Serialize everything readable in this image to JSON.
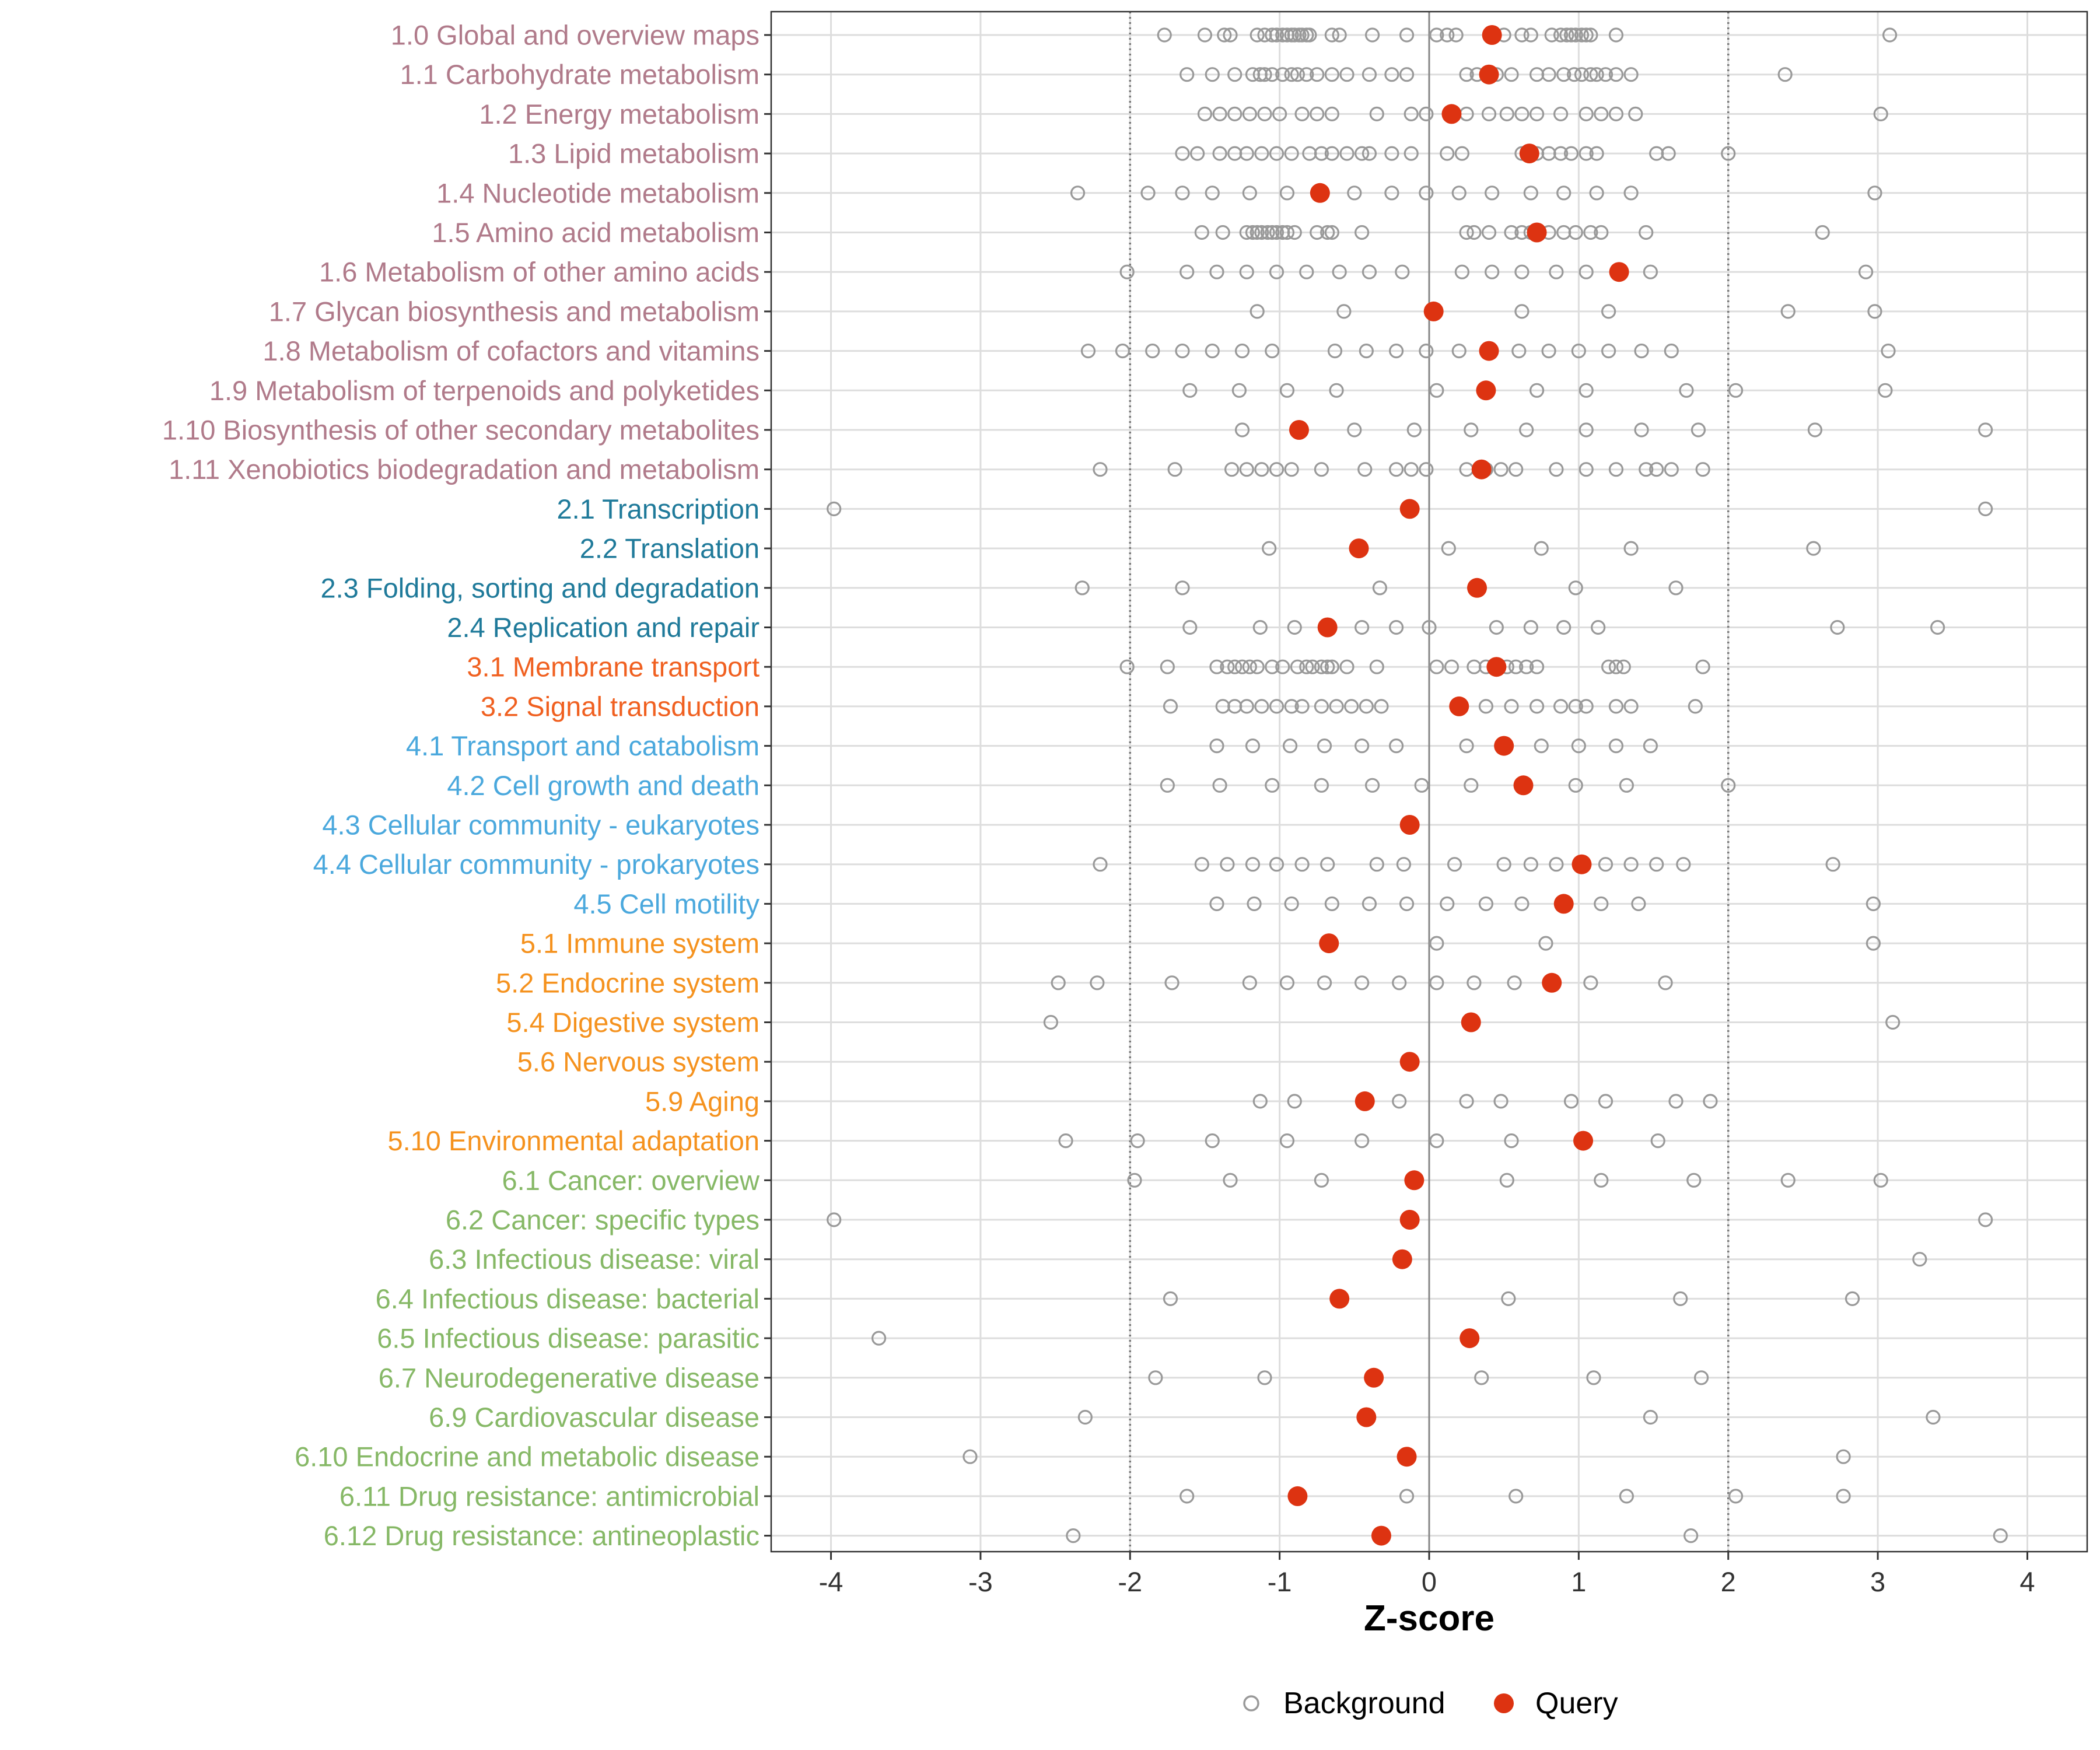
{
  "chart_data": {
    "type": "scatter",
    "xlabel": "Z-score",
    "ylabel": "",
    "xlim": [
      -4.4,
      4.4
    ],
    "xticks": [
      -4,
      -3,
      -2,
      -1,
      0,
      1,
      2,
      3,
      4
    ],
    "xtick_labels": [
      "-4",
      "-3",
      "-2",
      "-1",
      "0",
      "1",
      "2",
      "3",
      "4"
    ],
    "reference_lines": [
      -2,
      2
    ],
    "legend": {
      "position": "bottom",
      "items": [
        {
          "name": "Background",
          "marker": "open-circle"
        },
        {
          "name": "Query",
          "marker": "filled-circle"
        }
      ]
    },
    "colors": {
      "background": "#999999",
      "query": "#DD3311",
      "grid": "#DDDDDD",
      "group_1": "#B07A8A",
      "group_2": "#1F7A9A",
      "group_3": "#F06020",
      "group_4": "#4AA8DD",
      "group_5": "#F5921E",
      "group_6": "#86B866"
    },
    "categories": [
      {
        "label": "1.0 Global and overview maps",
        "group": 1,
        "query": 0.42,
        "background": [
          -1.77,
          -1.5,
          -1.37,
          -1.33,
          -1.15,
          -1.1,
          -1.05,
          -1.02,
          -0.98,
          -0.95,
          -0.92,
          -0.9,
          -0.87,
          -0.85,
          -0.82,
          -0.8,
          -0.65,
          -0.6,
          -0.38,
          -0.15,
          0.05,
          0.12,
          0.18,
          0.5,
          0.62,
          0.68,
          0.82,
          0.88,
          0.92,
          0.95,
          0.98,
          1.02,
          1.05,
          1.08,
          1.25,
          3.08
        ]
      },
      {
        "label": "1.1 Carbohydrate metabolism",
        "group": 1,
        "query": 0.4,
        "background": [
          -1.62,
          -1.45,
          -1.3,
          -1.18,
          -1.13,
          -1.1,
          -1.05,
          -0.98,
          -0.92,
          -0.88,
          -0.82,
          -0.75,
          -0.65,
          -0.55,
          -0.4,
          -0.25,
          -0.15,
          0.25,
          0.32,
          0.45,
          0.55,
          0.72,
          0.8,
          0.9,
          0.97,
          1.02,
          1.08,
          1.12,
          1.18,
          1.25,
          1.35,
          2.38
        ]
      },
      {
        "label": "1.2 Energy metabolism",
        "group": 1,
        "query": 0.15,
        "background": [
          -1.5,
          -1.4,
          -1.3,
          -1.2,
          -1.1,
          -1.0,
          -0.85,
          -0.75,
          -0.65,
          -0.35,
          -0.12,
          -0.02,
          0.25,
          0.4,
          0.52,
          0.62,
          0.72,
          0.88,
          1.05,
          1.15,
          1.25,
          1.38,
          3.02
        ]
      },
      {
        "label": "1.3 Lipid metabolism",
        "group": 1,
        "query": 0.67,
        "background": [
          -1.65,
          -1.55,
          -1.4,
          -1.3,
          -1.22,
          -1.12,
          -1.02,
          -0.92,
          -0.8,
          -0.72,
          -0.65,
          -0.55,
          -0.45,
          -0.4,
          -0.25,
          -0.12,
          0.12,
          0.22,
          0.62,
          0.72,
          0.8,
          0.88,
          0.95,
          1.05,
          1.12,
          1.52,
          1.6,
          2.0
        ]
      },
      {
        "label": "1.4 Nucleotide metabolism",
        "group": 1,
        "query": -0.73,
        "background": [
          -2.35,
          -1.88,
          -1.65,
          -1.45,
          -1.2,
          -0.95,
          -0.5,
          -0.25,
          -0.02,
          0.2,
          0.42,
          0.68,
          0.9,
          1.12,
          1.35,
          2.98
        ]
      },
      {
        "label": "1.5 Amino acid metabolism",
        "group": 1,
        "query": 0.72,
        "background": [
          -1.52,
          -1.38,
          -1.22,
          -1.18,
          -1.15,
          -1.12,
          -1.08,
          -1.05,
          -1.02,
          -0.98,
          -0.95,
          -0.9,
          -0.75,
          -0.68,
          -0.65,
          -0.45,
          0.25,
          0.3,
          0.4,
          0.55,
          0.62,
          0.68,
          0.8,
          0.9,
          0.98,
          1.08,
          1.15,
          1.45,
          2.63
        ]
      },
      {
        "label": "1.6 Metabolism of other amino acids",
        "group": 1,
        "query": 1.27,
        "background": [
          -2.02,
          -1.62,
          -1.42,
          -1.22,
          -1.02,
          -0.82,
          -0.6,
          -0.4,
          -0.18,
          0.22,
          0.42,
          0.62,
          0.85,
          1.05,
          1.48,
          2.92
        ]
      },
      {
        "label": "1.7 Glycan biosynthesis and metabolism",
        "group": 1,
        "query": 0.03,
        "background": [
          -1.15,
          -0.57,
          0.62,
          1.2,
          2.4,
          2.98
        ]
      },
      {
        "label": "1.8 Metabolism of cofactors and vitamins",
        "group": 1,
        "query": 0.4,
        "background": [
          -2.28,
          -2.05,
          -1.85,
          -1.65,
          -1.45,
          -1.25,
          -1.05,
          -0.63,
          -0.42,
          -0.22,
          -0.02,
          0.2,
          0.4,
          0.6,
          0.8,
          1.0,
          1.2,
          1.42,
          1.62,
          3.07
        ]
      },
      {
        "label": "1.9 Metabolism of terpenoids and polyketides",
        "group": 1,
        "query": 0.38,
        "background": [
          -1.6,
          -1.27,
          -0.95,
          -0.62,
          0.05,
          0.72,
          1.05,
          1.72,
          2.05,
          3.05
        ]
      },
      {
        "label": "1.10 Biosynthesis of other secondary metabolites",
        "group": 1,
        "query": -0.87,
        "background": [
          -1.25,
          -0.5,
          -0.1,
          0.28,
          0.65,
          1.05,
          1.42,
          1.8,
          2.58,
          3.72
        ]
      },
      {
        "label": "1.11 Xenobiotics biodegradation and metabolism",
        "group": 1,
        "query": 0.35,
        "background": [
          -2.2,
          -1.7,
          -1.32,
          -1.22,
          -1.12,
          -1.02,
          -0.92,
          -0.72,
          -0.43,
          -0.22,
          -0.12,
          -0.02,
          0.25,
          0.38,
          0.48,
          0.58,
          0.85,
          1.05,
          1.25,
          1.45,
          1.52,
          1.62,
          1.83
        ]
      },
      {
        "label": "2.1 Transcription",
        "group": 2,
        "query": -0.13,
        "background": [
          -3.98,
          3.72
        ]
      },
      {
        "label": "2.2 Translation",
        "group": 2,
        "query": -0.47,
        "background": [
          -1.07,
          0.13,
          0.75,
          1.35,
          2.57
        ]
      },
      {
        "label": "2.3 Folding, sorting and degradation",
        "group": 2,
        "query": 0.32,
        "background": [
          -2.32,
          -1.65,
          -0.33,
          0.98,
          1.65
        ]
      },
      {
        "label": "2.4 Replication and repair",
        "group": 2,
        "query": -0.68,
        "background": [
          -1.6,
          -1.13,
          -0.9,
          -0.68,
          -0.45,
          -0.22,
          0.0,
          0.45,
          0.68,
          0.9,
          1.13,
          2.73,
          3.4
        ]
      },
      {
        "label": "3.1 Membrane transport",
        "group": 3,
        "query": 0.45,
        "background": [
          -2.02,
          -1.75,
          -1.42,
          -1.35,
          -1.3,
          -1.25,
          -1.2,
          -1.15,
          -1.05,
          -0.98,
          -0.88,
          -0.82,
          -0.78,
          -0.72,
          -0.68,
          -0.65,
          -0.55,
          -0.35,
          0.05,
          0.15,
          0.3,
          0.38,
          0.45,
          0.52,
          0.58,
          0.65,
          0.72,
          1.2,
          1.25,
          1.3,
          1.83
        ]
      },
      {
        "label": "3.2 Signal transduction",
        "group": 3,
        "query": 0.2,
        "background": [
          -1.73,
          -1.38,
          -1.3,
          -1.22,
          -1.12,
          -1.02,
          -0.92,
          -0.85,
          -0.72,
          -0.62,
          -0.52,
          -0.42,
          -0.32,
          0.38,
          0.55,
          0.72,
          0.88,
          0.98,
          1.05,
          1.25,
          1.35,
          1.78
        ]
      },
      {
        "label": "4.1 Transport and catabolism",
        "group": 4,
        "query": 0.5,
        "background": [
          -1.42,
          -1.18,
          -0.93,
          -0.7,
          -0.45,
          -0.22,
          0.25,
          0.75,
          1.0,
          1.25,
          1.48
        ]
      },
      {
        "label": "4.2 Cell growth and death",
        "group": 4,
        "query": 0.63,
        "background": [
          -1.75,
          -1.4,
          -1.05,
          -0.72,
          -0.38,
          -0.05,
          0.28,
          0.98,
          1.32,
          2.0
        ]
      },
      {
        "label": "4.3 Cellular community - eukaryotes",
        "group": 4,
        "query": -0.13,
        "background": []
      },
      {
        "label": "4.4 Cellular community - prokaryotes",
        "group": 4,
        "query": 1.02,
        "background": [
          -2.2,
          -1.52,
          -1.35,
          -1.18,
          -1.02,
          -0.85,
          -0.68,
          -0.35,
          -0.17,
          0.17,
          0.5,
          0.68,
          0.85,
          1.18,
          1.35,
          1.52,
          1.7,
          2.7
        ]
      },
      {
        "label": "4.5 Cell motility",
        "group": 4,
        "query": 0.9,
        "background": [
          -1.42,
          -1.17,
          -0.92,
          -0.65,
          -0.4,
          -0.15,
          0.12,
          0.38,
          0.62,
          1.15,
          1.4,
          2.97
        ]
      },
      {
        "label": "5.1 Immune system",
        "group": 5,
        "query": -0.67,
        "background": [
          0.05,
          0.78,
          2.97
        ]
      },
      {
        "label": "5.2 Endocrine system",
        "group": 5,
        "query": 0.82,
        "background": [
          -2.48,
          -2.22,
          -1.72,
          -1.2,
          -0.95,
          -0.7,
          -0.45,
          -0.2,
          0.05,
          0.3,
          0.57,
          1.08,
          1.58
        ]
      },
      {
        "label": "5.4 Digestive system",
        "group": 5,
        "query": 0.28,
        "background": [
          -2.53,
          3.1
        ]
      },
      {
        "label": "5.6 Nervous system",
        "group": 5,
        "query": -0.13,
        "background": []
      },
      {
        "label": "5.9 Aging",
        "group": 5,
        "query": -0.43,
        "background": [
          -1.13,
          -0.9,
          -0.2,
          0.25,
          0.48,
          0.95,
          1.18,
          1.65,
          1.88
        ]
      },
      {
        "label": "5.10 Environmental adaptation",
        "group": 5,
        "query": 1.03,
        "background": [
          -2.43,
          -1.95,
          -1.45,
          -0.95,
          -0.45,
          0.05,
          0.55,
          1.53
        ]
      },
      {
        "label": "6.1 Cancer: overview",
        "group": 6,
        "query": -0.1,
        "background": [
          -1.97,
          -1.33,
          -0.72,
          0.52,
          1.15,
          1.77,
          2.4,
          3.02
        ]
      },
      {
        "label": "6.2 Cancer: specific types",
        "group": 6,
        "query": -0.13,
        "background": [
          -3.98,
          3.72
        ]
      },
      {
        "label": "6.3 Infectious disease: viral",
        "group": 6,
        "query": -0.18,
        "background": [
          3.28
        ]
      },
      {
        "label": "6.4 Infectious disease: bacterial",
        "group": 6,
        "query": -0.6,
        "background": [
          -1.73,
          0.53,
          1.68,
          2.83
        ]
      },
      {
        "label": "6.5 Infectious disease: parasitic",
        "group": 6,
        "query": 0.27,
        "background": [
          -3.68
        ]
      },
      {
        "label": "6.7 Neurodegenerative disease",
        "group": 6,
        "query": -0.37,
        "background": [
          -1.83,
          -1.1,
          0.35,
          1.1,
          1.82
        ]
      },
      {
        "label": "6.9 Cardiovascular disease",
        "group": 6,
        "query": -0.42,
        "background": [
          -2.3,
          1.48,
          3.37
        ]
      },
      {
        "label": "6.10 Endocrine and metabolic disease",
        "group": 6,
        "query": -0.15,
        "background": [
          -3.07,
          2.77
        ]
      },
      {
        "label": "6.11 Drug resistance: antimicrobial",
        "group": 6,
        "query": -0.88,
        "background": [
          -1.62,
          -0.15,
          0.58,
          1.32,
          2.05,
          2.77
        ]
      },
      {
        "label": "6.12 Drug resistance: antineoplastic",
        "group": 6,
        "query": -0.32,
        "background": [
          -2.38,
          1.75,
          3.82
        ]
      }
    ]
  }
}
